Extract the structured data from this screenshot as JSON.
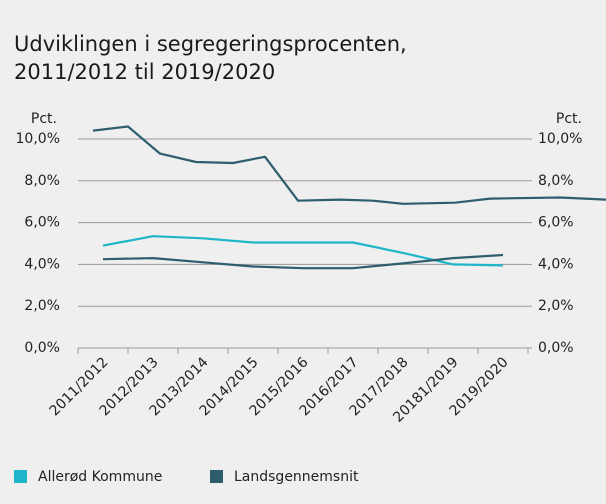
{
  "chart_data": {
    "type": "line",
    "title": [
      "Udviklingen i segregeringsprocenten,",
      "2011/2012 til 2019/2020"
    ],
    "ylabel": "Pct.",
    "y2label": "Pct.",
    "categories": [
      "2011/2012",
      "2012/2013",
      "2013/2014",
      "2014/2015",
      "2015/2016",
      "2016/2017",
      "2017/2018",
      "20181/2019",
      "2019/2020"
    ],
    "series": [
      {
        "name": "Allerød Kommune",
        "color": "#1fb5c9",
        "values": [
          4.9,
          5.35,
          5.25,
          5.05,
          5.05,
          5.05,
          4.55,
          4.0,
          3.95
        ]
      },
      {
        "name": "Landsgennemsnit",
        "color": "#2e5e6e",
        "values": [
          4.25,
          4.3,
          4.1,
          3.9,
          3.82,
          3.82,
          4.05,
          4.3,
          4.45
        ]
      },
      {
        "color": "#2e5e6e",
        "x": [
          -0.2,
          0.5,
          1.14,
          1.86,
          2.6,
          3.24,
          3.9,
          4.74,
          5.4,
          6.0,
          7.04,
          7.74,
          9.14,
          10.06
        ],
        "values": [
          10.4,
          10.6,
          9.3,
          8.9,
          8.85,
          9.15,
          7.05,
          7.1,
          7.05,
          6.9,
          6.95,
          7.15,
          7.2,
          7.1
        ]
      }
    ],
    "ylim": [
      0,
      10
    ],
    "yticks": [
      {
        "value": 0,
        "label": "0,0%"
      },
      {
        "value": 2,
        "label": "2,0%"
      },
      {
        "value": 4,
        "label": "4,0%"
      },
      {
        "value": 6,
        "label": "6,0%"
      },
      {
        "value": 8,
        "label": "8,0%"
      },
      {
        "value": 10,
        "label": "10,0%"
      }
    ],
    "y2lim": [
      0,
      10
    ],
    "y2ticks": [
      {
        "value": 0,
        "label": "0,0%"
      },
      {
        "value": 2,
        "label": "2,0%"
      },
      {
        "value": 4,
        "label": "4,0%"
      },
      {
        "value": 6,
        "label": "6,0%"
      },
      {
        "value": 8,
        "label": "8,0%"
      },
      {
        "value": 10,
        "label": "10,0%"
      }
    ],
    "grid": true
  }
}
